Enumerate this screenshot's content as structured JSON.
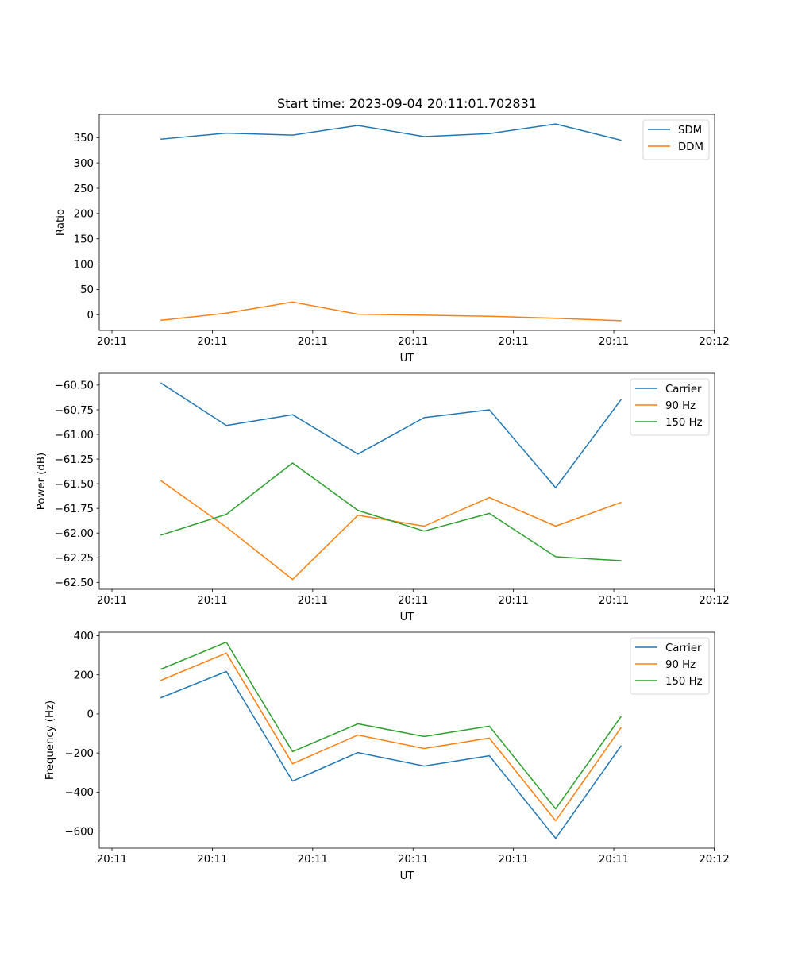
{
  "figure": {
    "title": "Start time: 2023-09-04 20:11:01.702831"
  },
  "colors": {
    "blue": "#1f77b4",
    "orange": "#ff7f0e",
    "green": "#2ca02c"
  },
  "chart_data": [
    {
      "type": "line",
      "title": "Start time: 2023-09-04 20:11:01.702831",
      "xlabel": "UT",
      "ylabel": "Ratio",
      "x_ticks": [
        "20:11",
        "20:11",
        "20:11",
        "20:11",
        "20:11",
        "20:11",
        "20:12"
      ],
      "x_tick_positions": [
        0,
        1,
        2,
        3,
        4,
        5,
        6
      ],
      "xlim": [
        0,
        6
      ],
      "x": [
        0.49,
        1.14,
        1.8,
        2.45,
        3.11,
        3.76,
        4.42,
        5.07
      ],
      "y_ticks": [
        0,
        50,
        100,
        150,
        200,
        250,
        300,
        350
      ],
      "ylim": [
        -31,
        396
      ],
      "grid": false,
      "legend": "top-right",
      "series": [
        {
          "name": "SDM",
          "color": "#1f77b4",
          "values": [
            347,
            359,
            355,
            374,
            352,
            358,
            377,
            345
          ]
        },
        {
          "name": "DDM",
          "color": "#ff7f0e",
          "values": [
            -11,
            3,
            25,
            1,
            -1,
            -3,
            -7,
            -12
          ]
        }
      ]
    },
    {
      "type": "line",
      "title": "",
      "xlabel": "UT",
      "ylabel": "Power (dB)",
      "x_ticks": [
        "20:11",
        "20:11",
        "20:11",
        "20:11",
        "20:11",
        "20:11",
        "20:12"
      ],
      "x_tick_positions": [
        0,
        1,
        2,
        3,
        4,
        5,
        6
      ],
      "xlim": [
        0,
        6
      ],
      "x": [
        0.49,
        1.14,
        1.8,
        2.45,
        3.11,
        3.76,
        4.42,
        5.07
      ],
      "y_ticks": [
        -62.5,
        -62.25,
        -62.0,
        -61.75,
        -61.5,
        -61.25,
        -61.0,
        -60.75,
        -60.5
      ],
      "y_tick_labels": [
        "−62.50",
        "−62.25",
        "−62.00",
        "−61.75",
        "−61.50",
        "−61.25",
        "−61.00",
        "−60.75",
        "−60.50"
      ],
      "ylim": [
        -62.57,
        -60.38
      ],
      "grid": false,
      "legend": "top-right",
      "series": [
        {
          "name": "Carrier",
          "color": "#1f77b4",
          "values": [
            -60.48,
            -60.91,
            -60.8,
            -61.2,
            -60.83,
            -60.75,
            -61.54,
            -60.65
          ]
        },
        {
          "name": "90 Hz",
          "color": "#ff7f0e",
          "values": [
            -61.47,
            -61.94,
            -62.47,
            -61.82,
            -61.93,
            -61.64,
            -61.93,
            -61.69
          ]
        },
        {
          "name": "150 Hz",
          "color": "#2ca02c",
          "values": [
            -62.02,
            -61.81,
            -61.29,
            -61.77,
            -61.98,
            -61.8,
            -62.24,
            -62.28
          ]
        }
      ]
    },
    {
      "type": "line",
      "title": "",
      "xlabel": "UT",
      "ylabel": "Frequency (Hz)",
      "x_ticks": [
        "20:11",
        "20:11",
        "20:11",
        "20:11",
        "20:11",
        "20:11",
        "20:12"
      ],
      "x_tick_positions": [
        0,
        1,
        2,
        3,
        4,
        5,
        6
      ],
      "xlim": [
        0,
        6
      ],
      "x": [
        0.49,
        1.14,
        1.8,
        2.45,
        3.11,
        3.76,
        4.42,
        5.07
      ],
      "y_ticks": [
        -600,
        -400,
        -200,
        0,
        200,
        400
      ],
      "y_tick_labels": [
        "−600",
        "−400",
        "−200",
        "0",
        "200",
        "400"
      ],
      "ylim": [
        -687,
        418
      ],
      "grid": false,
      "legend": "top-right",
      "series": [
        {
          "name": "Carrier",
          "color": "#1f77b4",
          "values": [
            83,
            217,
            -344,
            -198,
            -267,
            -214,
            -637,
            -165
          ]
        },
        {
          "name": "90 Hz",
          "color": "#ff7f0e",
          "values": [
            172,
            311,
            -255,
            -108,
            -177,
            -124,
            -547,
            -72
          ]
        },
        {
          "name": "150 Hz",
          "color": "#2ca02c",
          "values": [
            229,
            367,
            -193,
            -51,
            -116,
            -63,
            -486,
            -15
          ]
        }
      ]
    }
  ]
}
